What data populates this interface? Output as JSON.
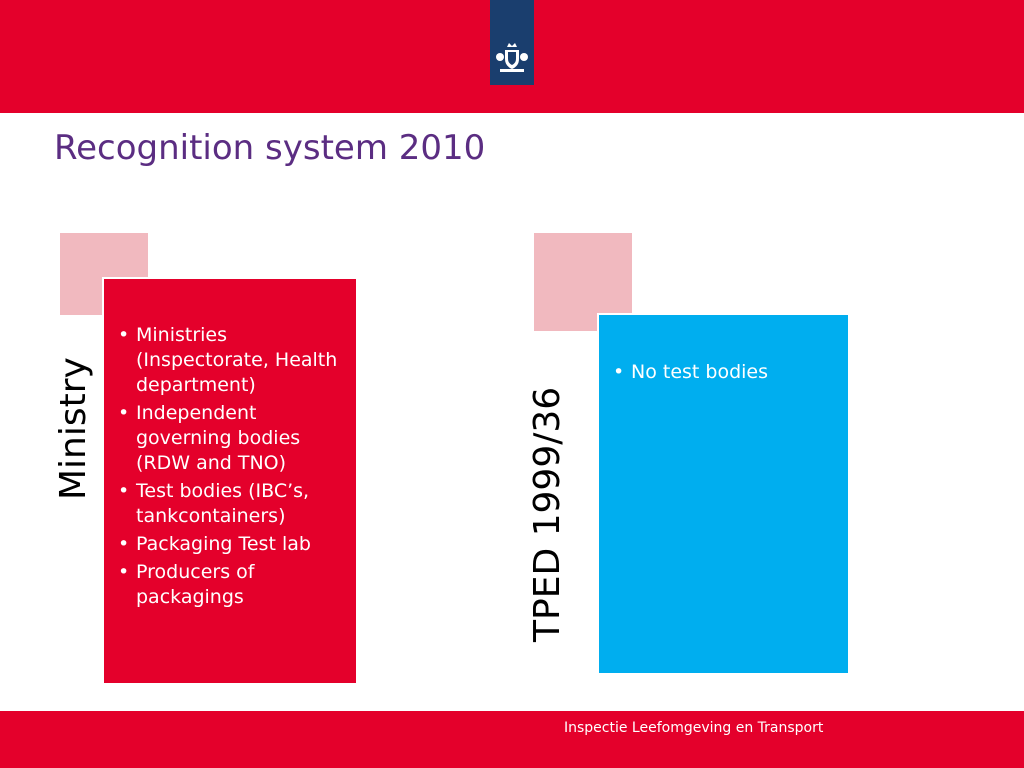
{
  "slide": {
    "title": "Recognition system 2010"
  },
  "left_block": {
    "label": "Ministry",
    "items": [
      "Ministries (Inspectorate, Health department)",
      "Independent governing bodies (RDW and TNO)",
      "Test bodies (IBC’s, tankcontainers)",
      "Packaging Test lab",
      "Producers of packagings"
    ]
  },
  "right_block": {
    "label": "TPED 1999/36",
    "items": [
      "No test bodies"
    ]
  },
  "footer": {
    "text": "Inspectie Leefomgeving en Transport"
  },
  "colors": {
    "brand_red": "#e4002b",
    "logo_blue": "#1a3e6e",
    "title_purple": "#5b2d82",
    "pink_square": "#f1b9bf",
    "panel_blue": "#00aeef"
  },
  "icons": {
    "logo": "coat-of-arms-icon"
  }
}
